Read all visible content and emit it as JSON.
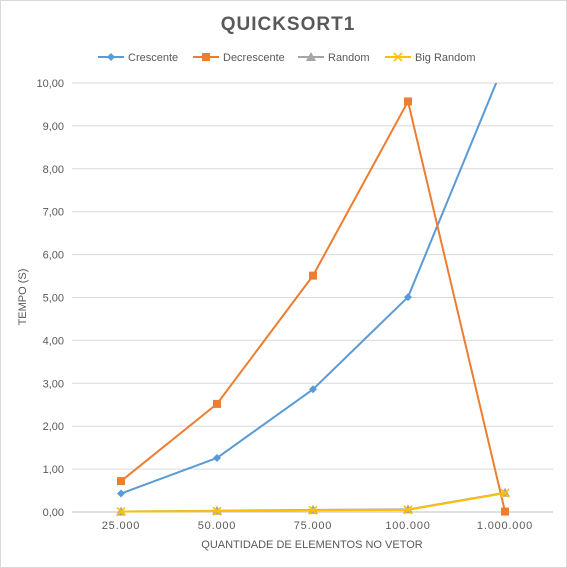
{
  "chart_data": {
    "type": "line",
    "title": "QUICKSORT1",
    "xlabel": "QUANTIDADE DE ELEMENTOS NO VETOR",
    "ylabel": "TEMPO (S)",
    "categories": [
      "25.000",
      "50.000",
      "75.000",
      "100.000",
      "1.000.000"
    ],
    "ylim": [
      0,
      10
    ],
    "yticks": [
      "0,00",
      "1,00",
      "2,00",
      "3,00",
      "4,00",
      "5,00",
      "6,00",
      "7,00",
      "8,00",
      "9,00",
      "10,00"
    ],
    "grid": true,
    "legend_position": "top",
    "series": [
      {
        "name": "Crescente",
        "color": "#5b9bd5",
        "marker": "diamond",
        "values": [
          0.43,
          1.26,
          2.86,
          5.01,
          10.5
        ]
      },
      {
        "name": "Decrescente",
        "color": "#ed7d31",
        "marker": "square",
        "values": [
          0.72,
          2.52,
          5.51,
          9.57,
          0.01
        ]
      },
      {
        "name": "Random",
        "color": "#a5a5a5",
        "marker": "triangle",
        "values": [
          0.01,
          0.03,
          0.05,
          0.06,
          0.45
        ]
      },
      {
        "name": "Big Random",
        "color": "#ffc000",
        "marker": "x",
        "values": [
          0.01,
          0.02,
          0.04,
          0.05,
          0.44
        ]
      }
    ]
  }
}
